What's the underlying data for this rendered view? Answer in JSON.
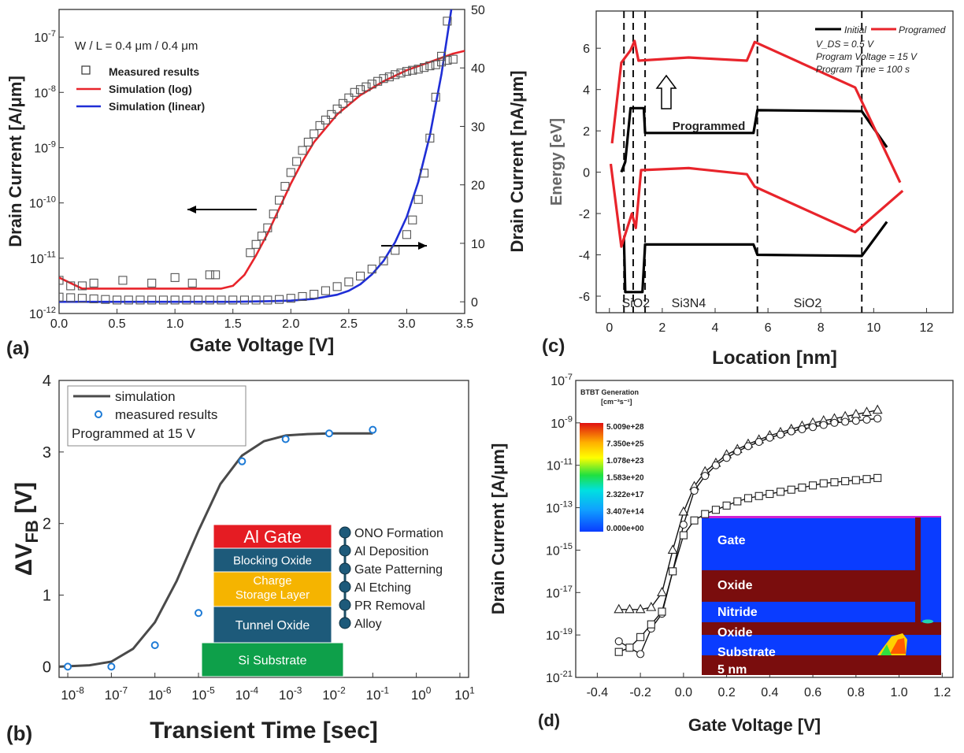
{
  "chart_data": [
    {
      "id": "a",
      "type": "line",
      "panel_label": "(a)",
      "annotation": "W / L = 0.4 μm / 0.4 μm",
      "xlabel": "Gate Voltage [V]",
      "ylabel_left": "Drain Current [A/μm]",
      "ylabel_right": "Drain Current [nA/μm]",
      "xlim": [
        0.0,
        3.5
      ],
      "ylim_left_log10": [
        -12,
        -6.5
      ],
      "ylim_right": [
        -2,
        50
      ],
      "x_ticks": [
        "0.0",
        "0.5",
        "1.0",
        "1.5",
        "2.0",
        "2.5",
        "3.0",
        "3.5"
      ],
      "y_left_ticks": [
        {
          "mant": "10",
          "exp": "-12",
          "v": -12
        },
        {
          "mant": "10",
          "exp": "-11",
          "v": -11
        },
        {
          "mant": "10",
          "exp": "-10",
          "v": -10
        },
        {
          "mant": "10",
          "exp": "-9",
          "v": -9
        },
        {
          "mant": "10",
          "exp": "-8",
          "v": -8
        },
        {
          "mant": "10",
          "exp": "-7",
          "v": -7
        }
      ],
      "y_right_ticks": [
        "0",
        "10",
        "20",
        "30",
        "40",
        "50"
      ],
      "legend": [
        "Measured results",
        "Simulation (log)",
        "Simulation (linear)"
      ],
      "series": [
        {
          "name": "Simulation (log)",
          "axis": "left_log10",
          "color": "#e8242b",
          "x": [
            0.0,
            0.2,
            0.4,
            0.6,
            0.8,
            1.0,
            1.2,
            1.4,
            1.5,
            1.6,
            1.7,
            1.8,
            1.9,
            2.0,
            2.1,
            2.2,
            2.4,
            2.6,
            2.8,
            3.0,
            3.2,
            3.4,
            3.5
          ],
          "y": [
            -11.35,
            -11.55,
            -11.55,
            -11.55,
            -11.55,
            -11.55,
            -11.55,
            -11.55,
            -11.5,
            -11.3,
            -10.95,
            -10.55,
            -10.1,
            -9.65,
            -9.25,
            -8.9,
            -8.4,
            -8.05,
            -7.8,
            -7.6,
            -7.45,
            -7.3,
            -7.25
          ]
        },
        {
          "name": "Simulation (linear)",
          "axis": "right",
          "color": "#1f2ed6",
          "x": [
            0.0,
            0.5,
            1.0,
            1.5,
            1.8,
            2.0,
            2.2,
            2.4,
            2.5,
            2.6,
            2.7,
            2.8,
            2.9,
            3.0,
            3.1,
            3.2,
            3.3,
            3.4
          ],
          "y": [
            0.0,
            0.0,
            0.0,
            0.0,
            0.1,
            0.2,
            0.5,
            1.2,
            1.9,
            3.0,
            4.7,
            7.0,
            10.2,
            14.5,
            20.5,
            28.5,
            39.0,
            52.0
          ]
        },
        {
          "name": "Measured results",
          "axis": "left_log10",
          "marker": "square",
          "x": [
            0.0,
            0.1,
            0.2,
            0.3,
            0.55,
            0.8,
            1.0,
            1.15,
            1.3,
            1.35,
            1.65,
            1.7,
            1.75,
            1.8,
            1.85,
            1.9,
            1.95,
            2.0,
            2.05,
            2.1,
            2.15,
            2.2,
            2.25,
            2.3,
            2.35,
            2.4,
            2.45,
            2.5,
            2.55,
            2.6,
            2.65,
            2.7,
            2.75,
            2.8,
            2.85,
            2.9,
            2.95,
            3.0,
            3.05,
            3.1,
            3.15,
            3.2,
            3.25,
            3.3,
            3.35,
            3.4
          ],
          "y": [
            -11.4,
            -11.5,
            -11.5,
            -11.45,
            -11.4,
            -11.45,
            -11.35,
            -11.45,
            -11.3,
            -11.3,
            -10.9,
            -10.75,
            -10.6,
            -10.45,
            -10.2,
            -9.95,
            -9.7,
            -9.45,
            -9.25,
            -9.05,
            -8.9,
            -8.75,
            -8.6,
            -8.5,
            -8.4,
            -8.3,
            -8.2,
            -8.1,
            -8.0,
            -7.95,
            -7.9,
            -7.85,
            -7.8,
            -7.75,
            -7.72,
            -7.68,
            -7.65,
            -7.62,
            -7.6,
            -7.58,
            -7.55,
            -7.52,
            -7.5,
            -7.45,
            -7.42,
            -7.4
          ]
        },
        {
          "name": "Measured results (linear)",
          "axis": "right",
          "marker": "square",
          "x": [
            0.0,
            0.1,
            0.2,
            0.3,
            0.4,
            0.5,
            0.6,
            0.7,
            0.8,
            0.9,
            1.0,
            1.1,
            1.2,
            1.3,
            1.4,
            1.5,
            1.6,
            1.7,
            1.8,
            1.9,
            2.0,
            2.1,
            2.2,
            2.3,
            2.4,
            2.5,
            2.6,
            2.7,
            2.8,
            2.9,
            3.0,
            3.05,
            3.1,
            3.15,
            3.2,
            3.25,
            3.3,
            3.35
          ],
          "y": [
            0.8,
            0.7,
            0.6,
            0.5,
            0.4,
            0.3,
            0.3,
            0.3,
            0.3,
            0.3,
            0.3,
            0.3,
            0.3,
            0.3,
            0.3,
            0.3,
            0.3,
            0.3,
            0.3,
            0.4,
            0.6,
            0.9,
            1.3,
            1.9,
            2.6,
            3.4,
            4.4,
            5.6,
            7.0,
            8.8,
            11.5,
            14.0,
            17.5,
            22.0,
            28.0,
            35.0,
            42.0,
            48.0
          ]
        }
      ]
    },
    {
      "id": "c",
      "type": "line",
      "panel_label": "(c)",
      "xlabel": "Location [nm]",
      "ylabel": "Energy [eV]",
      "xlim": [
        -0.5,
        13
      ],
      "ylim": [
        -6.8,
        7.8
      ],
      "x_ticks": [
        "0",
        "2",
        "4",
        "6",
        "8",
        "10",
        "12"
      ],
      "y_ticks": [
        "-6",
        "-4",
        "-2",
        "0",
        "2",
        "4",
        "6"
      ],
      "legend": [
        "Initial",
        "Programed"
      ],
      "info_lines": [
        "V_DS = 0.5 V",
        "Program Voltage = 15 V",
        "Program Time = 100 s"
      ],
      "region_labels": [
        "SiO2",
        "Si3N4",
        "SiO2"
      ],
      "annotation": "Programmed",
      "dashed_x": [
        0.55,
        0.9,
        1.35,
        5.6,
        9.55
      ],
      "series": [
        {
          "name": "Initial",
          "color": "#000000",
          "lines": [
            {
              "x": [
                0.45,
                0.6,
                0.8,
                0.85,
                1.3,
                1.35,
                5.45,
                5.6,
                9.55,
                10.5
              ],
              "y": [
                0.0,
                0.5,
                3.1,
                3.1,
                3.1,
                1.9,
                1.9,
                3.0,
                2.95,
                1.2
              ]
            },
            {
              "x": [
                0.55,
                0.6,
                1.25,
                1.35,
                5.45,
                5.6,
                9.55,
                10.5
              ],
              "y": [
                -3.2,
                -5.8,
                -5.8,
                -3.5,
                -3.5,
                -4.0,
                -4.05,
                -2.4
              ]
            }
          ]
        },
        {
          "name": "Programed",
          "color": "#e8242b",
          "lines": [
            {
              "x": [
                0.1,
                0.45,
                0.8,
                0.95,
                1.1,
                3.0,
                5.2,
                5.5,
                9.3,
                11.0
              ],
              "y": [
                1.4,
                5.3,
                5.9,
                6.35,
                5.4,
                5.55,
                5.4,
                6.3,
                4.1,
                -0.5
              ]
            },
            {
              "x": [
                0.05,
                0.45,
                0.85,
                1.0,
                1.2,
                3.0,
                5.2,
                5.5,
                9.3,
                11.1
              ],
              "y": [
                0.4,
                -3.6,
                -2.0,
                -2.7,
                0.1,
                0.2,
                -0.1,
                -0.7,
                -2.9,
                -0.9
              ]
            }
          ]
        }
      ]
    },
    {
      "id": "b",
      "type": "line",
      "panel_label": "(b)",
      "xlabel": "Transient Time [sec]",
      "ylabel": "ΔVFB [V]",
      "ylabel_sub": "FB",
      "ylabel_main": "ΔV",
      "ylabel_unit": " [V]",
      "xlim_log10": [
        -8.2,
        1.2
      ],
      "ylim": [
        -0.15,
        4.0
      ],
      "x_ticks": [
        {
          "mant": "10",
          "exp": "-8",
          "v": -8
        },
        {
          "mant": "10",
          "exp": "-7",
          "v": -7
        },
        {
          "mant": "10",
          "exp": "-6",
          "v": -6
        },
        {
          "mant": "10",
          "exp": "-5",
          "v": -5
        },
        {
          "mant": "10",
          "exp": "-4",
          "v": -4
        },
        {
          "mant": "10",
          "exp": "-3",
          "v": -3
        },
        {
          "mant": "10",
          "exp": "-2",
          "v": -2
        },
        {
          "mant": "10",
          "exp": "-1",
          "v": -1
        },
        {
          "mant": "10",
          "exp": "0",
          "v": 0
        },
        {
          "mant": "10",
          "exp": "1",
          "v": 1
        }
      ],
      "y_ticks": [
        "0",
        "1",
        "2",
        "3",
        "4"
      ],
      "legend": [
        "simulation",
        "measured results",
        "Programmed at 15 V"
      ],
      "series": [
        {
          "name": "simulation",
          "color": "#4a4a4a",
          "x": [
            -8.2,
            -7.5,
            -7.0,
            -6.5,
            -6.0,
            -5.5,
            -5.0,
            -4.5,
            -4.0,
            -3.5,
            -3.0,
            -2.5,
            -2.0,
            -1.5,
            -1.0
          ],
          "y": [
            0.0,
            0.02,
            0.07,
            0.25,
            0.62,
            1.2,
            1.9,
            2.55,
            2.95,
            3.15,
            3.23,
            3.25,
            3.26,
            3.26,
            3.26
          ]
        },
        {
          "name": "measured results",
          "marker": "circle",
          "color": "#1e7bd6",
          "x": [
            -8,
            -7,
            -6,
            -5,
            -4,
            -3,
            -2,
            -1
          ],
          "y": [
            0.0,
            0.0,
            0.3,
            0.75,
            2.87,
            3.18,
            3.26,
            3.31
          ]
        }
      ]
    },
    {
      "id": "d",
      "type": "line",
      "panel_label": "(d)",
      "xlabel": "Gate Voltage [V]",
      "ylabel": "Drain Current [A/μm]",
      "xlim": [
        -0.5,
        1.25
      ],
      "ylim_log10": [
        -21,
        -7
      ],
      "x_ticks": [
        "-0.4",
        "-0.2",
        "0.0",
        "0.2",
        "0.4",
        "0.6",
        "0.8",
        "1.0",
        "1.2"
      ],
      "y_ticks": [
        {
          "mant": "10",
          "exp": "-7",
          "v": -7
        },
        {
          "mant": "10",
          "exp": "-9",
          "v": -9
        },
        {
          "mant": "10",
          "exp": "-11",
          "v": -11
        },
        {
          "mant": "10",
          "exp": "-13",
          "v": -13
        },
        {
          "mant": "10",
          "exp": "-15",
          "v": -15
        },
        {
          "mant": "10",
          "exp": "-17",
          "v": -17
        },
        {
          "mant": "10",
          "exp": "-19",
          "v": -19
        },
        {
          "mant": "10",
          "exp": "-21",
          "v": -21
        }
      ],
      "series": [
        {
          "marker": "triangle",
          "x": [
            -0.3,
            -0.25,
            -0.2,
            -0.15,
            -0.1,
            -0.05,
            0.0,
            0.05,
            0.1,
            0.15,
            0.2,
            0.25,
            0.3,
            0.35,
            0.4,
            0.45,
            0.5,
            0.55,
            0.6,
            0.65,
            0.7,
            0.75,
            0.8,
            0.85,
            0.9
          ],
          "y": [
            -17.8,
            -17.8,
            -17.8,
            -17.7,
            -17.0,
            -15.0,
            -13.2,
            -12.0,
            -11.3,
            -10.9,
            -10.5,
            -10.25,
            -10.0,
            -9.8,
            -9.6,
            -9.45,
            -9.3,
            -9.15,
            -9.0,
            -8.9,
            -8.8,
            -8.7,
            -8.6,
            -8.5,
            -8.4
          ]
        },
        {
          "marker": "circle",
          "x": [
            -0.3,
            -0.25,
            -0.2,
            -0.15,
            -0.1,
            -0.05,
            0.0,
            0.05,
            0.1,
            0.15,
            0.2,
            0.25,
            0.3,
            0.35,
            0.4,
            0.45,
            0.5,
            0.55,
            0.6,
            0.65,
            0.7,
            0.75,
            0.8,
            0.85,
            0.9
          ],
          "y": [
            -19.3,
            -19.6,
            -19.9,
            -18.7,
            -18.0,
            -16.0,
            -13.8,
            -12.2,
            -11.5,
            -11.0,
            -10.65,
            -10.35,
            -10.1,
            -9.9,
            -9.7,
            -9.55,
            -9.4,
            -9.3,
            -9.2,
            -9.1,
            -9.0,
            -8.95,
            -8.9,
            -8.85,
            -8.8
          ]
        },
        {
          "marker": "square",
          "x": [
            -0.3,
            -0.25,
            -0.2,
            -0.15,
            -0.1,
            -0.05,
            0.0,
            0.05,
            0.1,
            0.15,
            0.2,
            0.25,
            0.3,
            0.35,
            0.4,
            0.45,
            0.5,
            0.55,
            0.6,
            0.65,
            0.7,
            0.75,
            0.8,
            0.85,
            0.9
          ],
          "y": [
            -19.8,
            -19.6,
            -19.1,
            -18.5,
            -17.9,
            -16.0,
            -14.3,
            -13.6,
            -13.3,
            -13.1,
            -12.9,
            -12.7,
            -12.55,
            -12.45,
            -12.35,
            -12.25,
            -12.15,
            -12.05,
            -11.95,
            -11.85,
            -11.8,
            -11.75,
            -11.7,
            -11.65,
            -11.6
          ]
        }
      ],
      "colorbar": {
        "title": "BTBT Generation",
        "unit": "[cm⁻³s⁻¹]",
        "labels": [
          "5.009e+28",
          "7.350e+25",
          "1.078e+23",
          "1.583e+20",
          "2.322e+17",
          "3.407e+14",
          "0.000e+00"
        ]
      },
      "device_layers": [
        "Gate",
        "Oxide",
        "Nitride",
        "Oxide",
        "Substrate",
        "5 nm"
      ]
    }
  ],
  "inset_b": {
    "stack": [
      "Al Gate",
      "Blocking Oxide",
      "Charge",
      "Storage Layer",
      "Tunnel Oxide",
      "Si Substrate"
    ],
    "steps": [
      "ONO Formation",
      "Al Deposition",
      "Gate Patterning",
      "Al Etching",
      "PR Removal",
      "Alloy"
    ]
  }
}
